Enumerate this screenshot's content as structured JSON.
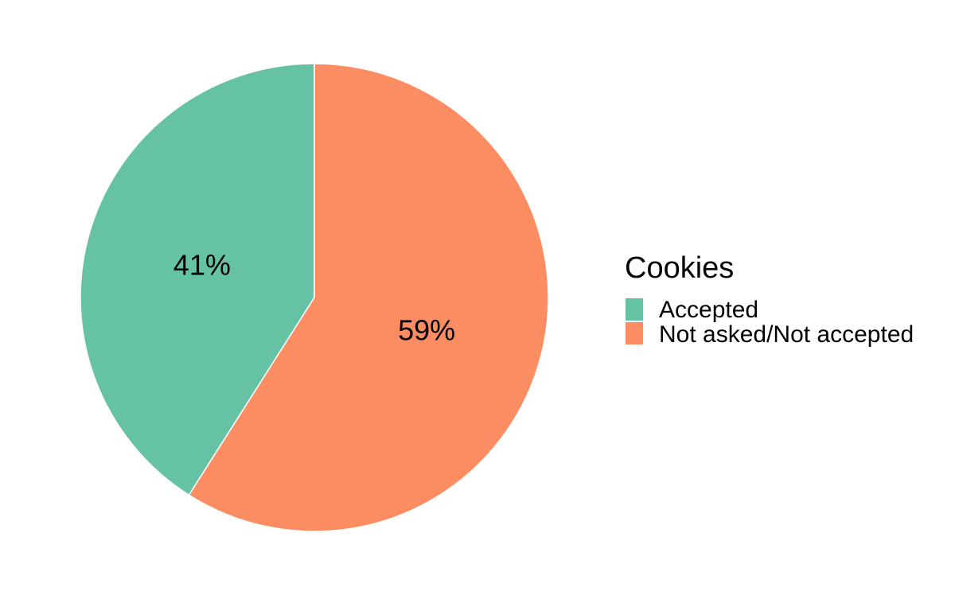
{
  "chart_data": {
    "type": "pie",
    "categories": [
      "Accepted",
      "Not asked/Not accepted"
    ],
    "values": [
      41,
      59
    ],
    "data_labels": [
      "41%",
      "59%"
    ],
    "colors": [
      "#66c2a5",
      "#fc8d62"
    ],
    "legend": {
      "title": "Cookies",
      "placement": "right",
      "entries": [
        "Accepted",
        "Not asked/Not accepted"
      ]
    },
    "title": "",
    "grid": false
  }
}
